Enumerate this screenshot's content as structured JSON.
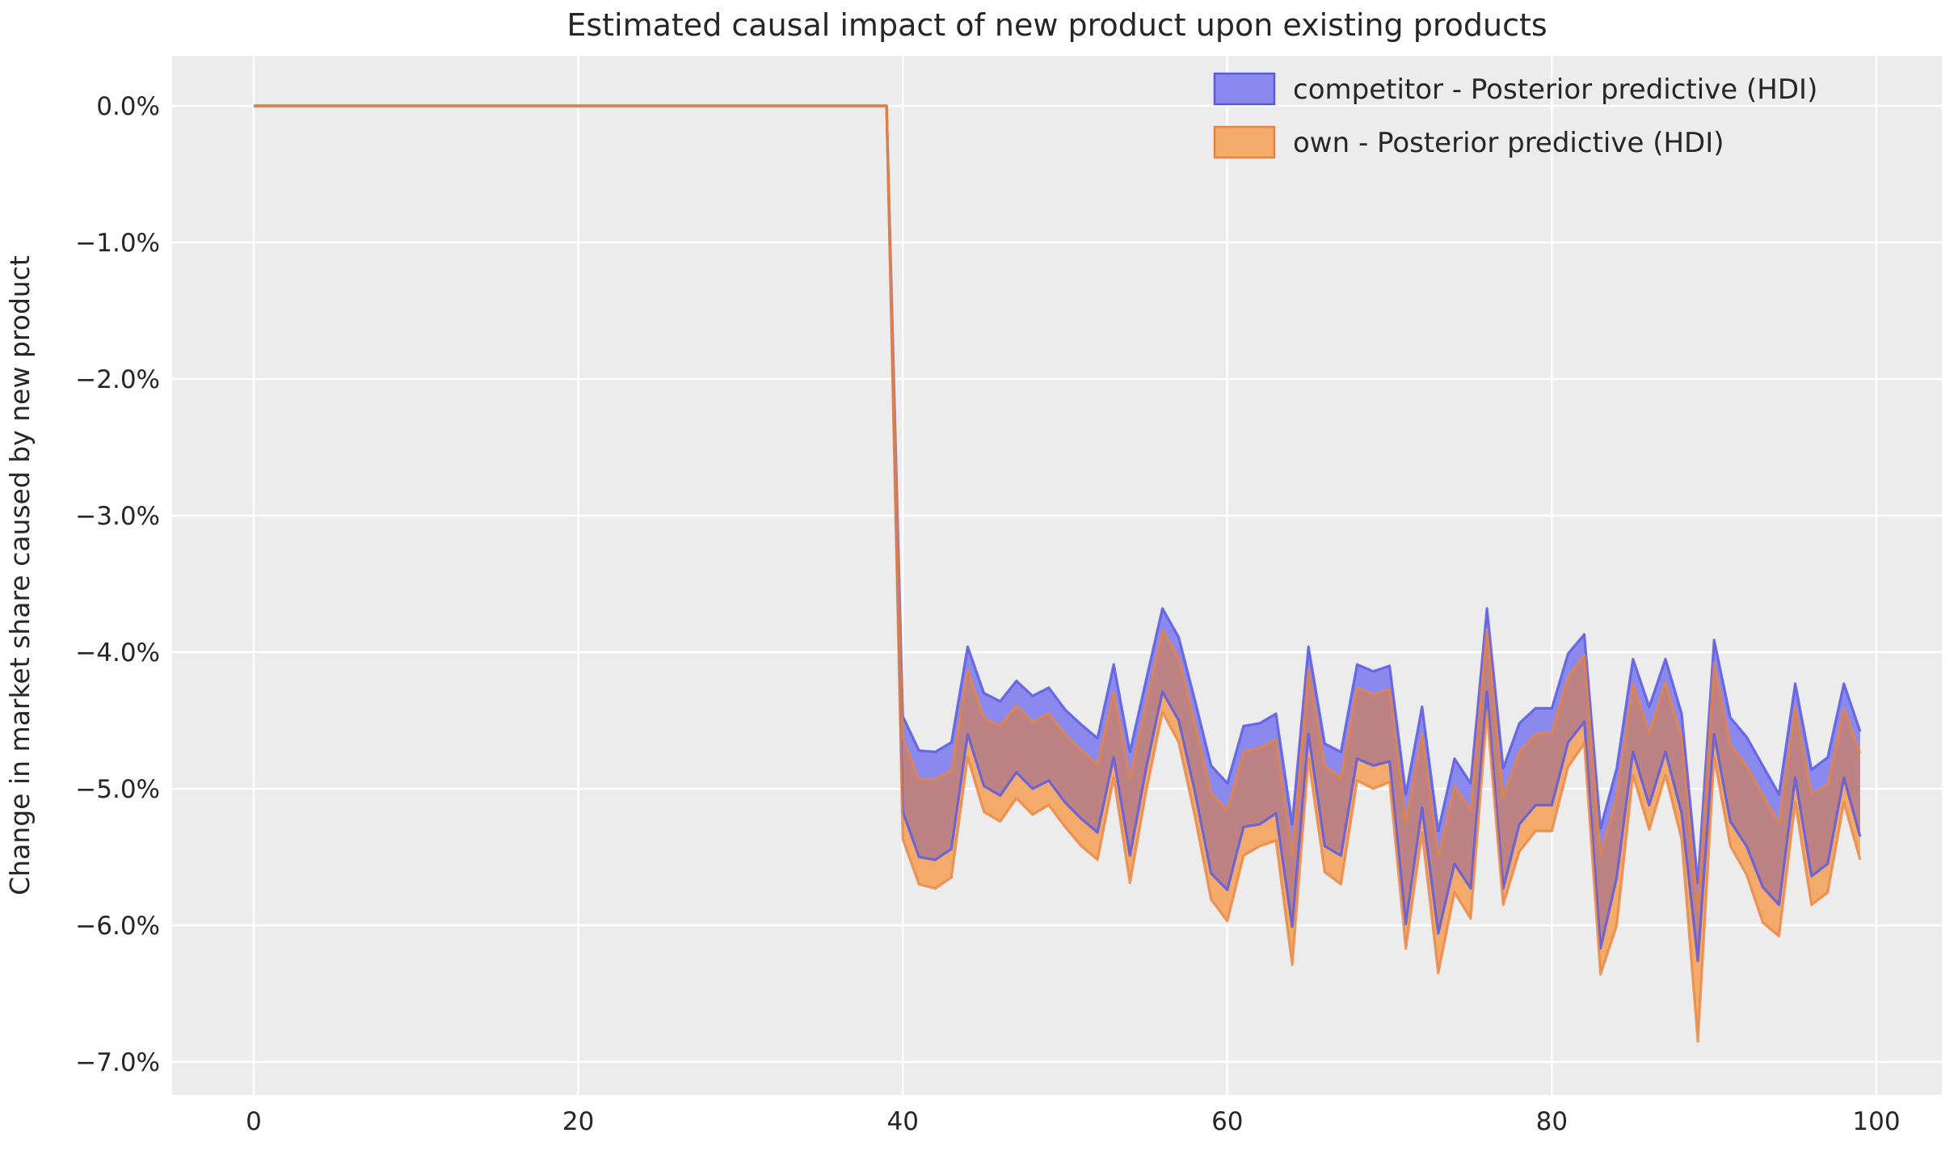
{
  "title": "Estimated causal impact of new product upon existing products",
  "ylabel": "Change in market share caused by new product",
  "legend": {
    "position": "upper right",
    "items": [
      {
        "label": "competitor - Posterior predictive (HDI)",
        "fill": "#8a8aee",
        "edge": "#5a5ae0"
      },
      {
        "label": "own - Posterior predictive (HDI)",
        "fill": "#f3aa6a",
        "edge": "#e8823c"
      }
    ]
  },
  "colors": {
    "plot_bg": "#ececec",
    "grid": "#ffffff",
    "blue_fill": "#8a8aee",
    "blue_edge": "#5a5ae0",
    "orange_fill": "#f3aa6a",
    "orange_edge": "#e8823c",
    "overlap_fill": "#bd8284",
    "pre_line": "#c47c72",
    "text": "#262626"
  },
  "chart_data": {
    "type": "area",
    "title": "Estimated causal impact of new product upon existing products",
    "xlabel": "",
    "ylabel": "Change in market share caused by new product",
    "grid": true,
    "legend_position": "upper right",
    "xlim": [
      -4.95,
      103.95
    ],
    "ylim_pct": [
      -7.24,
      0.37
    ],
    "x_ticks": [
      0,
      20,
      40,
      60,
      80,
      100
    ],
    "y_ticks": {
      "labels": [
        "0.0%",
        "−1.0%",
        "−2.0%",
        "−3.0%",
        "−4.0%",
        "−5.0%",
        "−6.0%",
        "−7.0%"
      ],
      "values_pct": [
        0,
        -1,
        -2,
        -3,
        -4,
        -5,
        -6,
        -7
      ]
    },
    "pre_period": {
      "x_start": 0,
      "x_end": 39,
      "value_pct": 0.0
    },
    "post_x_start": 40,
    "series": [
      {
        "name": "competitor - Posterior predictive (HDI)",
        "kind": "hdi-band",
        "upper_pct": [
          -4.47,
          -4.72,
          -4.73,
          -4.66,
          -3.96,
          -4.3,
          -4.36,
          -4.21,
          -4.32,
          -4.26,
          -4.42,
          -4.53,
          -4.63,
          -4.09,
          -4.73,
          -4.2,
          -3.68,
          -3.89,
          -4.35,
          -4.83,
          -4.96,
          -4.54,
          -4.52,
          -4.45,
          -5.26,
          -3.96,
          -4.67,
          -4.73,
          -4.09,
          -4.14,
          -4.1,
          -5.04,
          -4.4,
          -5.31,
          -4.78,
          -4.96,
          -3.68,
          -4.85,
          -4.52,
          -4.41,
          -4.41,
          -4.01,
          -3.87,
          -5.29,
          -4.85,
          -4.05,
          -4.4,
          -4.05,
          -4.45,
          -5.69,
          -3.91,
          -4.48,
          -4.62,
          -4.83,
          -5.04,
          -4.23,
          -4.86,
          -4.77,
          -4.23,
          -4.58
        ],
        "lower_pct": [
          -5.17,
          -5.5,
          -5.52,
          -5.44,
          -4.6,
          -4.98,
          -5.05,
          -4.88,
          -5.0,
          -4.94,
          -5.1,
          -5.22,
          -5.32,
          -4.77,
          -5.49,
          -4.85,
          -4.29,
          -4.5,
          -5.02,
          -5.62,
          -5.74,
          -5.28,
          -5.26,
          -5.18,
          -6.01,
          -4.6,
          -5.42,
          -5.49,
          -4.78,
          -4.83,
          -4.8,
          -5.99,
          -5.14,
          -6.06,
          -5.55,
          -5.73,
          -4.29,
          -5.73,
          -5.26,
          -5.12,
          -5.12,
          -4.66,
          -4.51,
          -6.17,
          -5.65,
          -4.73,
          -5.12,
          -4.73,
          -5.18,
          -6.26,
          -4.6,
          -5.24,
          -5.42,
          -5.72,
          -5.85,
          -4.92,
          -5.64,
          -5.55,
          -4.92,
          -5.35
        ]
      },
      {
        "name": "own - Posterior predictive (HDI)",
        "kind": "hdi-band",
        "upper_pct": [
          -4.63,
          -4.93,
          -4.93,
          -4.87,
          -4.13,
          -4.48,
          -4.54,
          -4.39,
          -4.51,
          -4.45,
          -4.6,
          -4.72,
          -4.82,
          -4.29,
          -4.92,
          -4.38,
          -3.84,
          -4.04,
          -4.52,
          -5.03,
          -5.16,
          -4.73,
          -4.7,
          -4.64,
          -5.48,
          -4.13,
          -4.83,
          -4.92,
          -4.26,
          -4.31,
          -4.27,
          -5.24,
          -4.6,
          -5.5,
          -4.98,
          -5.16,
          -3.83,
          -5.06,
          -4.73,
          -4.6,
          -4.59,
          -4.18,
          -4.02,
          -5.49,
          -5.06,
          -4.23,
          -4.59,
          -4.22,
          -4.63,
          -5.9,
          -4.08,
          -4.68,
          -4.83,
          -5.05,
          -5.25,
          -4.4,
          -5.04,
          -4.97,
          -4.41,
          -4.74
        ],
        "lower_pct": [
          -5.37,
          -5.7,
          -5.73,
          -5.65,
          -4.77,
          -5.17,
          -5.24,
          -5.07,
          -5.19,
          -5.12,
          -5.28,
          -5.42,
          -5.52,
          -4.92,
          -5.69,
          -5.02,
          -4.44,
          -4.66,
          -5.2,
          -5.81,
          -5.97,
          -5.49,
          -5.42,
          -5.38,
          -6.29,
          -4.78,
          -5.61,
          -5.7,
          -4.94,
          -5.0,
          -4.95,
          -6.17,
          -5.32,
          -6.35,
          -5.76,
          -5.95,
          -4.44,
          -5.85,
          -5.46,
          -5.31,
          -5.31,
          -4.84,
          -4.67,
          -6.36,
          -6.0,
          -4.9,
          -5.3,
          -4.9,
          -5.37,
          -6.85,
          -4.77,
          -5.42,
          -5.63,
          -5.98,
          -6.08,
          -5.1,
          -5.85,
          -5.76,
          -5.1,
          -5.52
        ]
      }
    ]
  }
}
